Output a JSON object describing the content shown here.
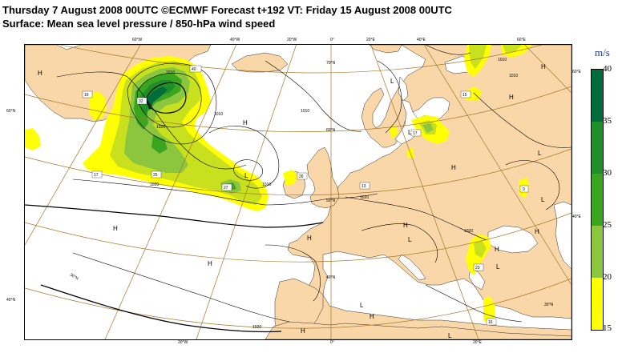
{
  "title_line1": "Thursday 7 August 2008 00UTC ©ECMWF Forecast t+192 VT: Friday 15 August 2008 00UTC",
  "title_line2": "Surface: Mean sea level pressure / 850-hPa wind speed",
  "legend": {
    "unit": "m/s",
    "ticks": [
      "40",
      "35",
      "30",
      "25",
      "20",
      "15"
    ],
    "colors": [
      "#006b3c",
      "#1f8f2a",
      "#3aa620",
      "#8cc63f",
      "#c8e01e",
      "#ffff00"
    ]
  },
  "colors": {
    "land": "#fad7a8",
    "sea": "#ffffff",
    "graticule": "#a6762a"
  },
  "top_lon_labels": [
    "60°W",
    "40°W",
    "20°W",
    "0°",
    "20°E",
    "40°E",
    "60°E"
  ],
  "bottom_lon_labels": [
    "20°W",
    "0°",
    "20°E"
  ],
  "left_lat_labels": [
    "60°N",
    "40°N"
  ],
  "right_lat_labels": [
    "60°E",
    "40°E"
  ],
  "inner_lat_labels": [
    "70°N",
    "60°N",
    "50°N",
    "40°N",
    "30°N",
    "30°N"
  ],
  "isobar_labels": [
    "1010",
    "1010",
    "1010",
    "1010",
    "1020",
    "1020",
    "1010",
    "1020",
    "1020",
    "1020",
    "1010"
  ],
  "pressure_centers": [
    "H",
    "H",
    "H",
    "H",
    "H",
    "H",
    "H",
    "H",
    "H",
    "H",
    "H",
    "H",
    "H",
    "L",
    "L",
    "L",
    "L",
    "L",
    "L",
    "L",
    "L",
    "L",
    "L"
  ],
  "wind_maxima": [
    "40",
    "16",
    "32",
    "17",
    "25",
    "27",
    "26",
    "13",
    "15",
    "17",
    "9",
    "23",
    "16"
  ]
}
